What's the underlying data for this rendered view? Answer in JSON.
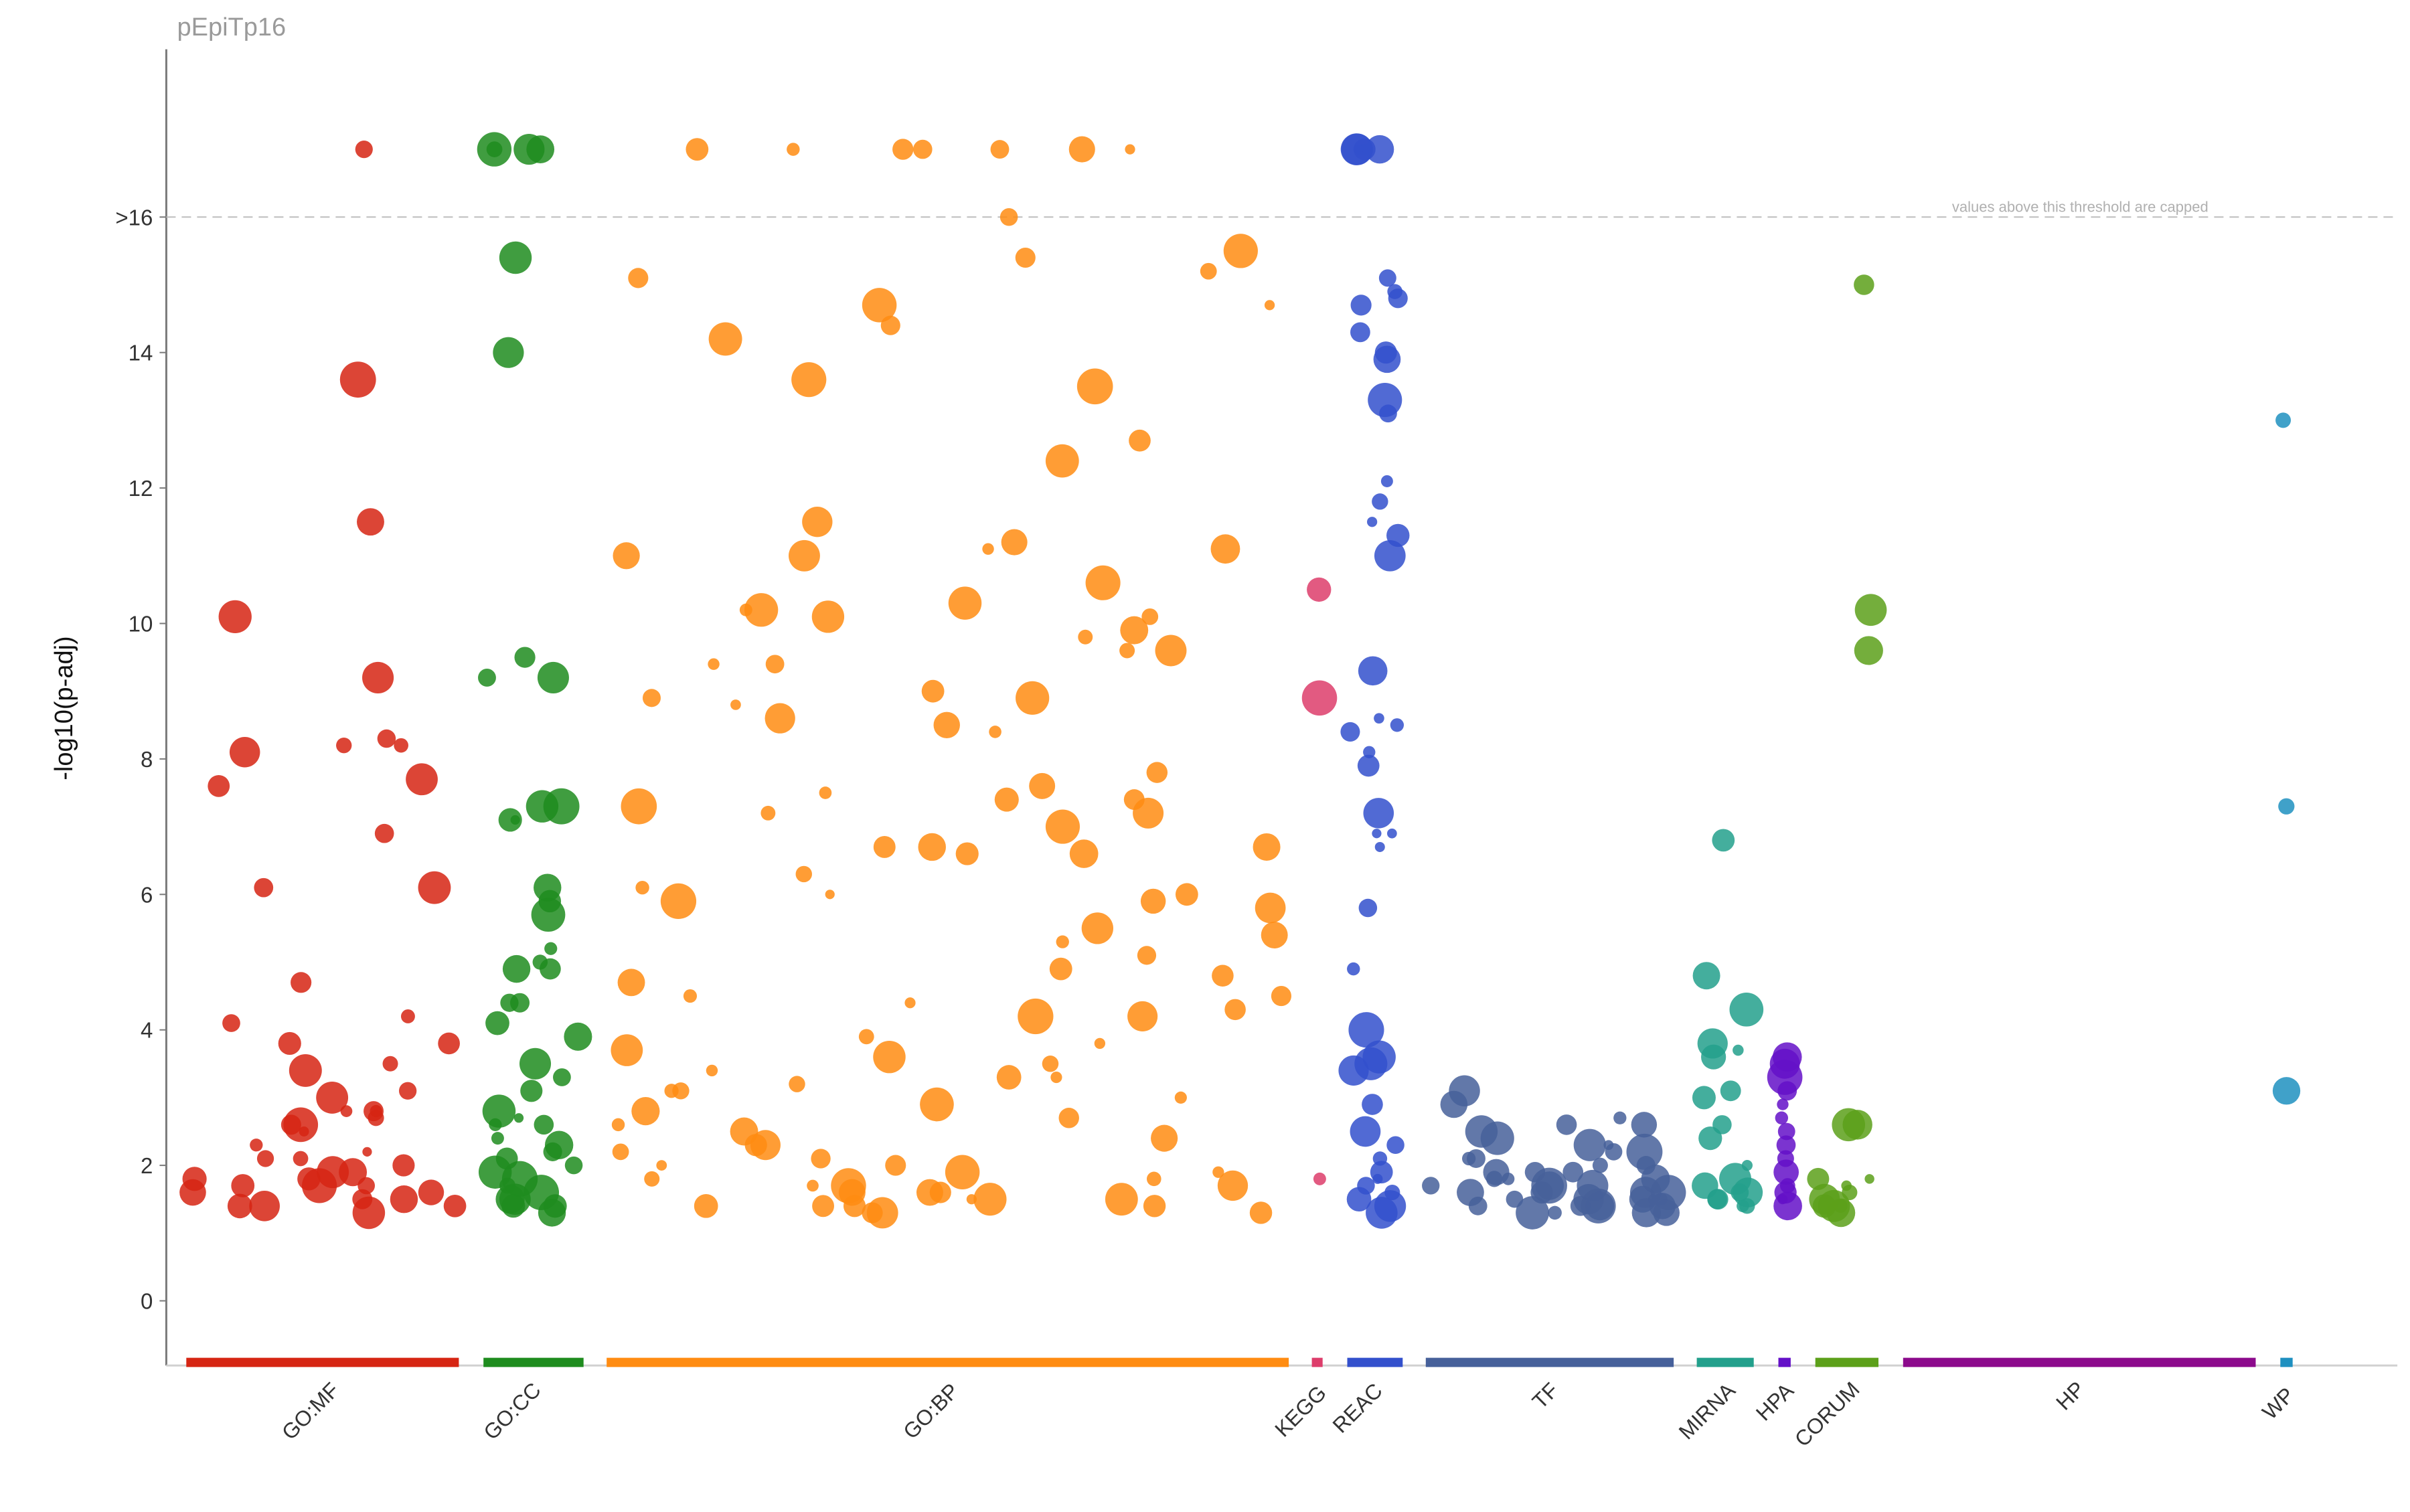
{
  "chart_data": {
    "type": "scatter",
    "title": "pEpiTp16",
    "ylabel": "-log10(p-adj)",
    "xlabel": "",
    "ylim": [
      -1,
      19
    ],
    "yticks": [
      "0",
      "2",
      "4",
      "6",
      "8",
      "10",
      "12",
      "14",
      ">16"
    ],
    "threshold": {
      "value": 16,
      "label": "values above this threshold are capped"
    },
    "capped_value": 17,
    "sources": [
      {
        "name": "GO:MF",
        "color": "#d62513"
      },
      {
        "name": "GO:CC",
        "color": "#1e8c1e"
      },
      {
        "name": "GO:BP",
        "color": "#ff8c12"
      },
      {
        "name": "KEGG",
        "color": "#dd3d6b"
      },
      {
        "name": "REAC",
        "color": "#3350cc"
      },
      {
        "name": "TF",
        "color": "#46609a"
      },
      {
        "name": "MIRNA",
        "color": "#23a08c"
      },
      {
        "name": "HPA",
        "color": "#6411c8"
      },
      {
        "name": "CORUM",
        "color": "#5ca01a"
      },
      {
        "name": "HP",
        "color": "#8c0a8c"
      },
      {
        "name": "WP",
        "color": "#1e90c0"
      }
    ],
    "series": [
      {
        "name": "GO:MF",
        "values": [
          17,
          13.6,
          11.5,
          10.1,
          9.2,
          8.3,
          8.2,
          8.2,
          8.1,
          7.7,
          7.6,
          6.9,
          6.1,
          6.1,
          4.7,
          4.2,
          4.1,
          3.8,
          3.8,
          3.5,
          3.4,
          3.1,
          3.0,
          2.8,
          2.8,
          2.8,
          2.7,
          2.6,
          2.6,
          2.5,
          2.3,
          2.2,
          2.1,
          2.1,
          2.0,
          1.9,
          1.9,
          1.8,
          1.8,
          1.7,
          1.7,
          1.7,
          1.6,
          1.6,
          1.5,
          1.5,
          1.4,
          1.4,
          1.4,
          1.3
        ]
      },
      {
        "name": "GO:CC",
        "values": [
          17,
          17,
          17,
          17,
          15.4,
          14.0,
          9.5,
          9.2,
          9.2,
          7.3,
          7.3,
          7.1,
          7.1,
          6.1,
          5.9,
          5.7,
          5.2,
          5.0,
          4.9,
          4.9,
          4.4,
          4.4,
          4.1,
          3.9,
          3.5,
          3.3,
          3.1,
          2.8,
          2.7,
          2.6,
          2.6,
          2.4,
          2.3,
          2.2,
          2.1,
          2.0,
          1.9,
          1.8,
          1.7,
          1.6,
          1.5,
          1.5,
          1.4,
          1.4,
          1.3
        ]
      },
      {
        "name": "GO:BP",
        "values": [
          17,
          17,
          17,
          17,
          17,
          17,
          17,
          16.0,
          15.5,
          15.4,
          15.2,
          15.1,
          14.7,
          14.7,
          14.4,
          14.2,
          13.6,
          13.5,
          12.7,
          12.4,
          11.5,
          11.2,
          11.1,
          11.1,
          11.0,
          11.0,
          10.6,
          10.3,
          10.2,
          10.2,
          10.1,
          10.1,
          9.9,
          9.8,
          9.6,
          9.6,
          9.4,
          9.4,
          9.0,
          8.9,
          8.9,
          8.8,
          8.6,
          8.5,
          8.4,
          7.8,
          7.6,
          7.5,
          7.4,
          7.4,
          7.3,
          7.2,
          7.2,
          7.0,
          6.7,
          6.7,
          6.7,
          6.6,
          6.6,
          6.3,
          6.1,
          6.0,
          6.0,
          5.9,
          5.9,
          5.8,
          5.5,
          5.4,
          5.3,
          5.1,
          4.9,
          4.8,
          4.7,
          4.5,
          4.5,
          4.4,
          4.3,
          4.2,
          4.2,
          3.9,
          3.8,
          3.7,
          3.6,
          3.5,
          3.4,
          3.3,
          3.3,
          3.2,
          3.1,
          3.1,
          3.0,
          2.9,
          2.8,
          2.7,
          2.6,
          2.5,
          2.4,
          2.3,
          2.3,
          2.2,
          2.1,
          2.0,
          2.0,
          1.9,
          1.9,
          1.8,
          1.8,
          1.7,
          1.7,
          1.7,
          1.6,
          1.6,
          1.6,
          1.5,
          1.5,
          1.5,
          1.4,
          1.4,
          1.4,
          1.4,
          1.3,
          1.3,
          1.3
        ]
      },
      {
        "name": "KEGG",
        "values": [
          10.5,
          8.9,
          1.8
        ]
      },
      {
        "name": "REAC",
        "values": [
          17,
          17,
          17,
          17,
          17,
          17,
          15.1,
          14.9,
          14.8,
          14.7,
          14.3,
          14.0,
          13.9,
          13.3,
          13.1,
          12.1,
          11.8,
          11.5,
          11.3,
          11.0,
          9.3,
          8.6,
          8.5,
          8.4,
          8.1,
          7.9,
          7.2,
          6.9,
          6.9,
          6.7,
          5.8,
          4.9,
          4.0,
          3.6,
          3.5,
          3.4,
          2.9,
          2.5,
          2.3,
          2.1,
          1.9,
          1.8,
          1.7,
          1.6,
          1.5,
          1.4,
          1.3
        ]
      },
      {
        "name": "TF",
        "values": [
          3.1,
          2.9,
          2.7,
          2.6,
          2.6,
          2.5,
          2.4,
          2.3,
          2.3,
          2.2,
          2.2,
          2.1,
          2.1,
          2.0,
          2.0,
          1.9,
          1.9,
          1.9,
          1.8,
          1.8,
          1.8,
          1.7,
          1.7,
          1.7,
          1.7,
          1.6,
          1.6,
          1.6,
          1.6,
          1.5,
          1.5,
          1.5,
          1.5,
          1.5,
          1.4,
          1.4,
          1.4,
          1.4,
          1.4,
          1.3,
          1.3,
          1.3,
          1.3
        ]
      },
      {
        "name": "MIRNA",
        "values": [
          6.8,
          4.8,
          4.3,
          3.8,
          3.7,
          3.6,
          3.1,
          3.0,
          2.6,
          2.4,
          2.0,
          1.8,
          1.7,
          1.6,
          1.6,
          1.5,
          1.5,
          1.4,
          1.4
        ]
      },
      {
        "name": "HPA",
        "values": [
          3.6,
          3.5,
          3.3,
          3.1,
          2.9,
          2.7,
          2.5,
          2.3,
          2.1,
          1.9,
          1.7,
          1.6,
          1.5,
          1.4
        ]
      },
      {
        "name": "CORUM",
        "values": [
          15.0,
          10.2,
          9.6,
          2.6,
          2.6,
          1.8,
          1.8,
          1.7,
          1.6,
          1.5,
          1.4,
          1.4,
          1.4,
          1.3
        ]
      },
      {
        "name": "HP",
        "values": []
      },
      {
        "name": "WP",
        "values": [
          13.0,
          7.3,
          3.1
        ]
      }
    ]
  }
}
